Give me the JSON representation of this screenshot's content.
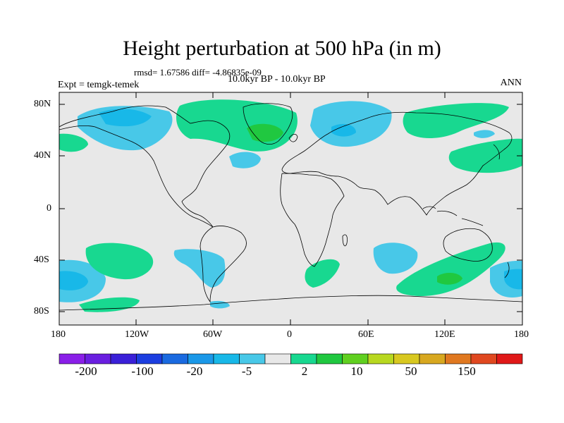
{
  "header": {
    "title": "Height perturbation at 500 hPa (in m)",
    "stats": "rmsd= 1.67586 diff= -4.86835e-09",
    "period": "10.0kyr BP - 10.0kyr BP",
    "experiment": "Expt = temgk-temek",
    "season": "ANN"
  },
  "axes": {
    "lat_ticks": [
      "80N",
      "40N",
      "0",
      "40S",
      "80S"
    ],
    "lon_ticks": [
      "180",
      "120W",
      "60W",
      "0",
      "60E",
      "120E",
      "180"
    ]
  },
  "colorbar": {
    "labels": [
      "-200",
      "-100",
      "-20",
      "-5",
      "2",
      "10",
      "50",
      "150"
    ],
    "colors": [
      "#8a1fe8",
      "#6a1fe0",
      "#3a20d8",
      "#1c3ee0",
      "#1a6ae0",
      "#1a98e8",
      "#18b8e8",
      "#48c8e8",
      "#e8e8e8",
      "#18d890",
      "#20c840",
      "#60d020",
      "#b8d820",
      "#d8c820",
      "#d8a820",
      "#e07820",
      "#e04820",
      "#e01818"
    ]
  },
  "colors": {
    "land_fill": "#e8e8e8",
    "ocean": "#e8e8e8",
    "neg_light": "#48c8e8",
    "neg_mid": "#18b8e8",
    "pos_light": "#18d890",
    "pos_mid": "#20c840"
  }
}
